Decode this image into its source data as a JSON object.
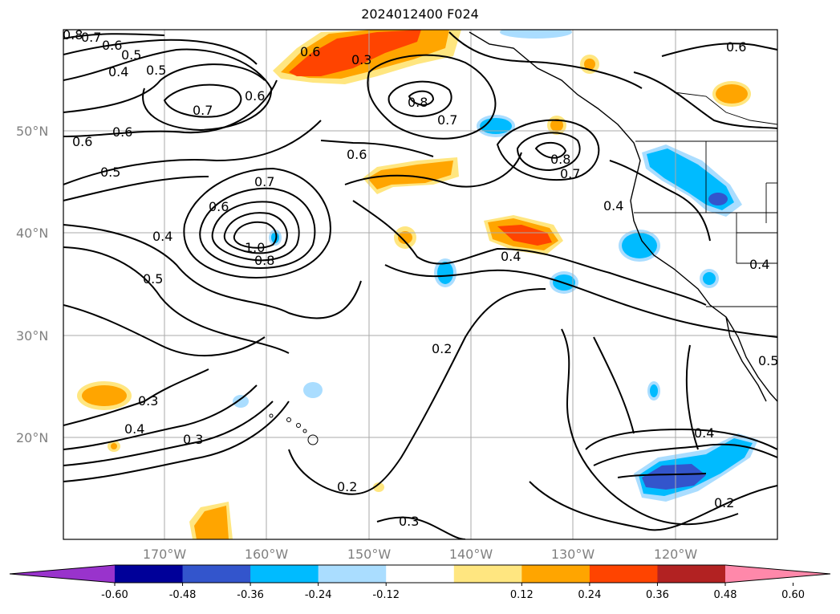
{
  "title": "2024012400 F024",
  "map": {
    "lat_labels": [
      "50°N",
      "40°N",
      "30°N",
      "20°N"
    ],
    "lon_labels": [
      "170°W",
      "160°W",
      "150°W",
      "140°W",
      "130°W",
      "120°W"
    ],
    "grid_color": "#aaaaaa",
    "contour_color": "#000000"
  },
  "colorbar": {
    "colors": [
      "#9933cc",
      "#000099",
      "#3355cc",
      "#00bbff",
      "#aaddff",
      "#ffffff",
      "#ffe680",
      "#ffa500",
      "#ff4400",
      "#b22222",
      "#ff88aa"
    ],
    "tick_labels": [
      "-0.60",
      "-0.48",
      "-0.36",
      "-0.24",
      "-0.12",
      "0.12",
      "0.24",
      "0.36",
      "0.48",
      "0.60"
    ]
  },
  "contour_labels": [
    {
      "text": "0.8"
    },
    {
      "text": "0.7"
    },
    {
      "text": "0.6"
    },
    {
      "text": "0.5"
    },
    {
      "text": "0.4"
    },
    {
      "text": "0.5"
    },
    {
      "text": "0.7"
    },
    {
      "text": "0.6"
    },
    {
      "text": "0.3"
    },
    {
      "text": "0.8"
    },
    {
      "text": "0.7"
    },
    {
      "text": "0.6"
    },
    {
      "text": "0.6"
    },
    {
      "text": "0.6"
    },
    {
      "text": "0.6"
    },
    {
      "text": "0.5"
    },
    {
      "text": "0.7"
    },
    {
      "text": "0.6"
    },
    {
      "text": "0.4"
    },
    {
      "text": "1.0"
    },
    {
      "text": "0.8"
    },
    {
      "text": "0.5"
    },
    {
      "text": "0.8"
    },
    {
      "text": "0.7"
    },
    {
      "text": "0.4"
    },
    {
      "text": "0.4"
    },
    {
      "text": "0.4"
    },
    {
      "text": "0.2"
    },
    {
      "text": "0.3"
    },
    {
      "text": "0.4"
    },
    {
      "text": "0.3"
    },
    {
      "text": "0.5"
    },
    {
      "text": "0.4"
    },
    {
      "text": "0.2"
    },
    {
      "text": "0.2"
    },
    {
      "text": "0.3"
    },
    {
      "text": "0.6"
    }
  ]
}
